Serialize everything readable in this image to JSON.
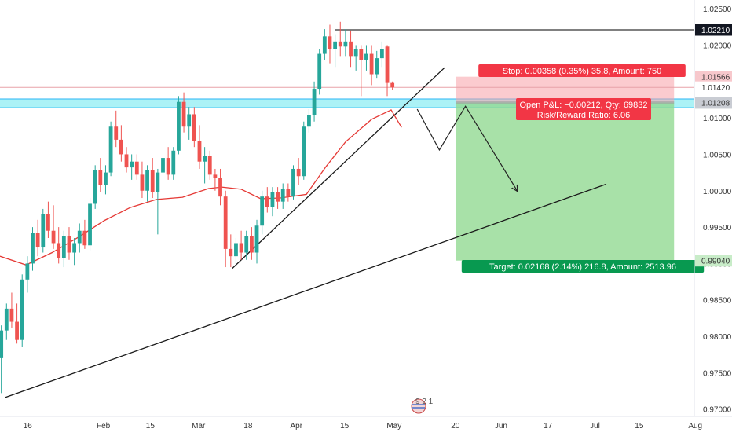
{
  "chart_data": {
    "type": "candlestick",
    "y_axis": {
      "range": [
        0.969,
        1.0262
      ],
      "tick_labels": [
        "1.02500",
        "1.02000",
        "1.01500",
        "1.01000",
        "1.00500",
        "1.00000",
        "0.99500",
        "0.99000",
        "0.98500",
        "0.98000",
        "0.97500",
        "0.97000"
      ],
      "tick_values": [
        1.025,
        1.02,
        1.015,
        1.01,
        1.005,
        1.0,
        0.995,
        0.99,
        0.985,
        0.98,
        0.975,
        0.97
      ]
    },
    "x_axis": {
      "tick_labels": [
        "16",
        "Feb",
        "15",
        "Mar",
        "18",
        "Apr",
        "15",
        "May",
        "20",
        "Jun",
        "17",
        "Jul",
        "15",
        "Aug"
      ],
      "tick_bars": [
        2,
        60,
        96,
        133,
        171,
        208,
        245,
        283,
        330,
        365,
        401,
        437,
        471,
        514
      ],
      "bar_count": 540
    },
    "price_labels": [
      {
        "text": "1.02210",
        "value": 1.0221,
        "style": "dark"
      },
      {
        "text": "1.01566",
        "value": 1.01566,
        "style": "stop"
      },
      {
        "text": "1.01420",
        "value": 1.0142,
        "style": "pink"
      },
      {
        "text": "1.01211",
        "value": 1.01211,
        "style": "dark"
      },
      {
        "text": "1.01208",
        "value": 1.01208,
        "style": "grey"
      },
      {
        "text": "0.99040",
        "value": 0.9904,
        "style": "target"
      }
    ],
    "horizontal_lines": {
      "high": {
        "value": 1.0221,
        "from_bar": 257,
        "color": "#000000"
      },
      "zone_top": 1.0126,
      "zone_bottom": 1.0114,
      "thin_pink": 1.0142
    },
    "position": {
      "entry": 1.01211,
      "stop": 1.01566,
      "target": 0.9904,
      "start_bar": 350,
      "end_bar": 517,
      "stop_text": "Stop: 0.00358 (0.35%) 35.8, Amount: 750",
      "pnl_text": "Open P&L: −0.00212, Qty: 69832",
      "rr_text": "Risk/Reward Ratio: 6.06",
      "target_text": "Target: 0.02168 (2.14%) 216.8, Amount: 2513.96"
    },
    "trendlines": [
      {
        "name": "long-support",
        "from": [
          4,
          0.9716
        ],
        "to": [
          465,
          1.0009
        ]
      },
      {
        "name": "short-support",
        "from": [
          178,
          0.9893
        ],
        "to": [
          341,
          1.0169
        ]
      }
    ],
    "projection_path": [
      [
        320,
        1.0112
      ],
      [
        337,
        1.0056
      ],
      [
        357,
        1.0116
      ],
      [
        397,
        0.9999
      ]
    ],
    "moving_average": {
      "name": "MA",
      "color": "#e53935",
      "points": [
        [
          0,
          0.991
        ],
        [
          20,
          0.9898
        ],
        [
          40,
          0.9915
        ],
        [
          60,
          0.9936
        ],
        [
          80,
          0.9959
        ],
        [
          100,
          0.9977
        ],
        [
          120,
          0.9988
        ],
        [
          140,
          0.9991
        ],
        [
          160,
          1.0003
        ],
        [
          170,
          1.0005
        ],
        [
          185,
          1.0002
        ],
        [
          200,
          0.9989
        ],
        [
          215,
          0.999
        ],
        [
          235,
          0.9995
        ],
        [
          250,
          1.0033
        ],
        [
          265,
          1.0067
        ],
        [
          285,
          1.0098
        ],
        [
          300,
          1.0111
        ],
        [
          308,
          1.0087
        ]
      ]
    },
    "candles": [
      {
        "b": 1,
        "o": 0.977,
        "h": 0.9815,
        "l": 0.9722,
        "c": 0.9808
      },
      {
        "b": 5,
        "o": 0.9808,
        "h": 0.9845,
        "l": 0.9795,
        "c": 0.9838
      },
      {
        "b": 9,
        "o": 0.9838,
        "h": 0.986,
        "l": 0.9812,
        "c": 0.982
      },
      {
        "b": 13,
        "o": 0.982,
        "h": 0.9845,
        "l": 0.979,
        "c": 0.9795
      },
      {
        "b": 17,
        "o": 0.9795,
        "h": 0.9885,
        "l": 0.9785,
        "c": 0.9878
      },
      {
        "b": 21,
        "o": 0.9878,
        "h": 0.991,
        "l": 0.986,
        "c": 0.99
      },
      {
        "b": 25,
        "o": 0.99,
        "h": 0.995,
        "l": 0.989,
        "c": 0.9942
      },
      {
        "b": 29,
        "o": 0.9942,
        "h": 0.996,
        "l": 0.991,
        "c": 0.9922
      },
      {
        "b": 33,
        "o": 0.9922,
        "h": 0.9975,
        "l": 0.9915,
        "c": 0.9968
      },
      {
        "b": 37,
        "o": 0.9968,
        "h": 0.9985,
        "l": 0.9935,
        "c": 0.9945
      },
      {
        "b": 41,
        "o": 0.9945,
        "h": 0.998,
        "l": 0.992,
        "c": 0.9928
      },
      {
        "b": 45,
        "o": 0.9928,
        "h": 0.995,
        "l": 0.99,
        "c": 0.9908
      },
      {
        "b": 49,
        "o": 0.9908,
        "h": 0.9945,
        "l": 0.9895,
        "c": 0.9938
      },
      {
        "b": 53,
        "o": 0.9938,
        "h": 0.995,
        "l": 0.9905,
        "c": 0.9915
      },
      {
        "b": 57,
        "o": 0.9915,
        "h": 0.9935,
        "l": 0.9898,
        "c": 0.9928
      },
      {
        "b": 61,
        "o": 0.9928,
        "h": 0.9955,
        "l": 0.9915,
        "c": 0.9945
      },
      {
        "b": 65,
        "o": 0.9945,
        "h": 0.996,
        "l": 0.992,
        "c": 0.9925
      },
      {
        "b": 69,
        "o": 0.9925,
        "h": 0.999,
        "l": 0.9918,
        "c": 0.9982
      },
      {
        "b": 73,
        "o": 0.9982,
        "h": 1.0035,
        "l": 0.9975,
        "c": 1.0028
      },
      {
        "b": 77,
        "o": 1.0028,
        "h": 1.0045,
        "l": 0.9998,
        "c": 1.0008
      },
      {
        "b": 81,
        "o": 1.0008,
        "h": 1.0035,
        "l": 0.9995,
        "c": 1.0025
      },
      {
        "b": 85,
        "o": 1.0025,
        "h": 1.0095,
        "l": 1.002,
        "c": 1.0088
      },
      {
        "b": 89,
        "o": 1.0088,
        "h": 1.011,
        "l": 1.006,
        "c": 1.007
      },
      {
        "b": 93,
        "o": 1.007,
        "h": 1.009,
        "l": 1.004,
        "c": 1.005
      },
      {
        "b": 97,
        "o": 1.005,
        "h": 1.006,
        "l": 1.0025,
        "c": 1.0032
      },
      {
        "b": 101,
        "o": 1.0032,
        "h": 1.005,
        "l": 1.0015,
        "c": 1.004
      },
      {
        "b": 105,
        "o": 1.004,
        "h": 1.005,
        "l": 1.0015,
        "c": 1.0022
      },
      {
        "b": 109,
        "o": 1.0022,
        "h": 1.004,
        "l": 0.999,
        "c": 1.0
      },
      {
        "b": 113,
        "o": 1.0,
        "h": 1.0035,
        "l": 0.9985,
        "c": 1.0028
      },
      {
        "b": 117,
        "o": 1.0028,
        "h": 1.0045,
        "l": 0.999,
        "c": 0.9998
      },
      {
        "b": 121,
        "o": 0.9998,
        "h": 1.003,
        "l": 0.994,
        "c": 1.0025
      },
      {
        "b": 125,
        "o": 1.0025,
        "h": 1.005,
        "l": 1.001,
        "c": 1.0045
      },
      {
        "b": 129,
        "o": 1.0045,
        "h": 1.006,
        "l": 1.0015,
        "c": 1.0022
      },
      {
        "b": 133,
        "o": 1.0022,
        "h": 1.006,
        "l": 1.0015,
        "c": 1.0055
      },
      {
        "b": 137,
        "o": 1.0055,
        "h": 1.013,
        "l": 1.005,
        "c": 1.0122
      },
      {
        "b": 141,
        "o": 1.0122,
        "h": 1.0135,
        "l": 1.008,
        "c": 1.0088
      },
      {
        "b": 145,
        "o": 1.0088,
        "h": 1.0115,
        "l": 1.007,
        "c": 1.0105
      },
      {
        "b": 149,
        "o": 1.0105,
        "h": 1.0115,
        "l": 1.006,
        "c": 1.0068
      },
      {
        "b": 153,
        "o": 1.0068,
        "h": 1.009,
        "l": 1.003,
        "c": 1.004
      },
      {
        "b": 157,
        "o": 1.004,
        "h": 1.006,
        "l": 1.001,
        "c": 1.0048
      },
      {
        "b": 161,
        "o": 1.0048,
        "h": 1.0055,
        "l": 1.0015,
        "c": 1.0022
      },
      {
        "b": 165,
        "o": 1.0022,
        "h": 1.003,
        "l": 1.0,
        "c": 1.0018
      },
      {
        "b": 169,
        "o": 1.0018,
        "h": 1.003,
        "l": 0.998,
        "c": 0.9992
      },
      {
        "b": 173,
        "o": 0.9992,
        "h": 1.0,
        "l": 0.9895,
        "c": 0.992
      },
      {
        "b": 177,
        "o": 0.992,
        "h": 0.994,
        "l": 0.9895,
        "c": 0.991
      },
      {
        "b": 181,
        "o": 0.991,
        "h": 0.9935,
        "l": 0.99,
        "c": 0.9928
      },
      {
        "b": 185,
        "o": 0.9928,
        "h": 0.9945,
        "l": 0.9905,
        "c": 0.9915
      },
      {
        "b": 189,
        "o": 0.9915,
        "h": 0.9945,
        "l": 0.9905,
        "c": 0.9938
      },
      {
        "b": 193,
        "o": 0.9938,
        "h": 0.995,
        "l": 0.9905,
        "c": 0.9915
      },
      {
        "b": 197,
        "o": 0.9915,
        "h": 0.996,
        "l": 0.99,
        "c": 0.9952
      },
      {
        "b": 201,
        "o": 0.9952,
        "h": 1.0,
        "l": 0.994,
        "c": 0.9992
      },
      {
        "b": 205,
        "o": 0.9992,
        "h": 1.0005,
        "l": 0.997,
        "c": 0.9978
      },
      {
        "b": 209,
        "o": 0.9978,
        "h": 1.0005,
        "l": 0.9965,
        "c": 0.9998
      },
      {
        "b": 213,
        "o": 0.9998,
        "h": 1.0005,
        "l": 0.9975,
        "c": 0.9985
      },
      {
        "b": 217,
        "o": 0.9985,
        "h": 1.001,
        "l": 0.9975,
        "c": 1.0002
      },
      {
        "b": 221,
        "o": 1.0002,
        "h": 1.001,
        "l": 0.9985,
        "c": 0.9992
      },
      {
        "b": 225,
        "o": 0.9992,
        "h": 1.0035,
        "l": 0.9988,
        "c": 1.003
      },
      {
        "b": 229,
        "o": 1.003,
        "h": 1.0045,
        "l": 1.0008,
        "c": 1.002
      },
      {
        "b": 233,
        "o": 1.002,
        "h": 1.0095,
        "l": 1.0015,
        "c": 1.0088
      },
      {
        "b": 237,
        "o": 1.0088,
        "h": 1.0112,
        "l": 1.008,
        "c": 1.0104
      },
      {
        "b": 241,
        "o": 1.0104,
        "h": 1.015,
        "l": 1.0095,
        "c": 1.014
      },
      {
        "b": 245,
        "o": 1.014,
        "h": 1.0195,
        "l": 1.0132,
        "c": 1.0188
      },
      {
        "b": 249,
        "o": 1.0188,
        "h": 1.0222,
        "l": 1.018,
        "c": 1.0212
      },
      {
        "b": 253,
        "o": 1.0212,
        "h": 1.0228,
        "l": 1.0175,
        "c": 1.0195
      },
      {
        "b": 257,
        "o": 1.0195,
        "h": 1.0215,
        "l": 1.017,
        "c": 1.0205
      },
      {
        "b": 261,
        "o": 1.0205,
        "h": 1.0232,
        "l": 1.0185,
        "c": 1.0198
      },
      {
        "b": 265,
        "o": 1.0198,
        "h": 1.0222,
        "l": 1.0185,
        "c": 1.0205
      },
      {
        "b": 269,
        "o": 1.0205,
        "h": 1.022,
        "l": 1.017,
        "c": 1.0185
      },
      {
        "b": 273,
        "o": 1.0185,
        "h": 1.02,
        "l": 1.0165,
        "c": 1.0195
      },
      {
        "b": 277,
        "o": 1.0195,
        "h": 1.02,
        "l": 1.013,
        "c": 1.018
      },
      {
        "b": 281,
        "o": 1.018,
        "h": 1.02,
        "l": 1.0165,
        "c": 1.0188
      },
      {
        "b": 285,
        "o": 1.0188,
        "h": 1.02,
        "l": 1.0145,
        "c": 1.016
      },
      {
        "b": 289,
        "o": 1.016,
        "h": 1.0192,
        "l": 1.0155,
        "c": 1.0182
      },
      {
        "b": 293,
        "o": 1.0182,
        "h": 1.0205,
        "l": 1.017,
        "c": 1.0195
      },
      {
        "b": 297,
        "o": 1.0198,
        "h": 1.02,
        "l": 1.013,
        "c": 1.0148
      },
      {
        "b": 301,
        "o": 1.0148,
        "h": 1.015,
        "l": 1.0138,
        "c": 1.0142
      }
    ],
    "watermark": "9 2 1"
  }
}
